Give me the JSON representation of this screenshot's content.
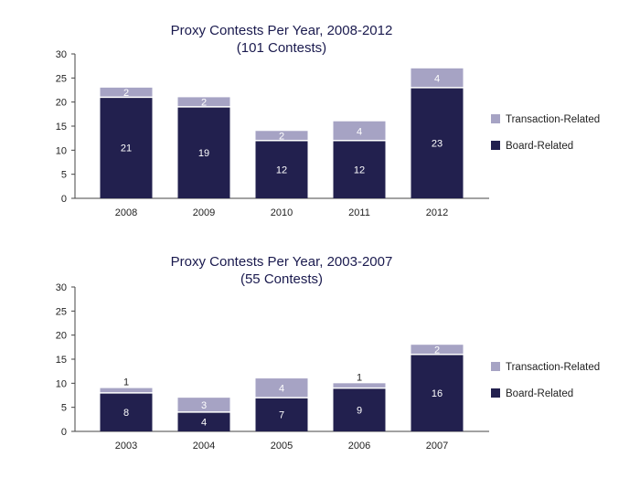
{
  "colors": {
    "board": "#22204e",
    "transaction": "#a6a3c4",
    "axis": "#444444",
    "label_on_board": "#ffffff",
    "label_on_transaction": "#ffffff",
    "label_above": "#222222"
  },
  "chart_data": [
    {
      "type": "bar",
      "stacked": true,
      "title": "Proxy Contests Per Year, 2008-2012",
      "subtitle": "(101 Contests)",
      "categories": [
        "2008",
        "2009",
        "2010",
        "2011",
        "2012"
      ],
      "series": [
        {
          "name": "Board-Related",
          "values": [
            21,
            19,
            12,
            12,
            23
          ]
        },
        {
          "name": "Transaction-Related",
          "values": [
            2,
            2,
            2,
            4,
            4
          ]
        }
      ],
      "ylim": [
        0,
        30
      ],
      "yticks": [
        "0",
        "5",
        "10",
        "15",
        "20",
        "25",
        "30"
      ],
      "legend": "right",
      "grid": false
    },
    {
      "type": "bar",
      "stacked": true,
      "title": "Proxy Contests Per Year, 2003-2007",
      "subtitle": "(55 Contests)",
      "categories": [
        "2003",
        "2004",
        "2005",
        "2006",
        "2007"
      ],
      "series": [
        {
          "name": "Board-Related",
          "values": [
            8,
            4,
            7,
            9,
            16
          ]
        },
        {
          "name": "Transaction-Related",
          "values": [
            1,
            3,
            4,
            1,
            2
          ]
        }
      ],
      "ylim": [
        0,
        30
      ],
      "yticks": [
        "0",
        "5",
        "10",
        "15",
        "20",
        "25",
        "30"
      ],
      "legend": "right",
      "grid": false
    }
  ]
}
